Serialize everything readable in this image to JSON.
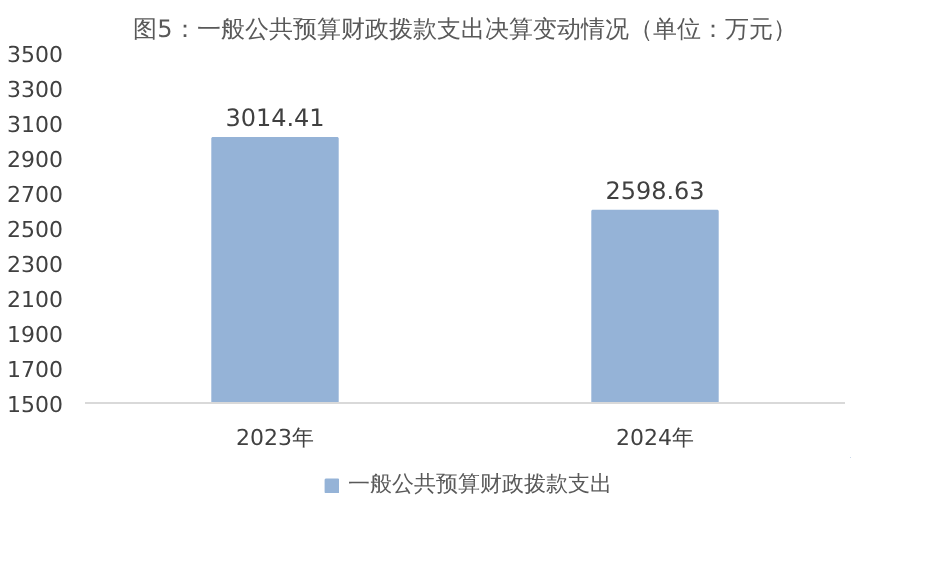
{
  "chart_data": {
    "type": "bar",
    "title": "图5：一般公共预算财政拨款支出决算变动情况（单位：万元）",
    "categories": [
      "2023年",
      "2024年"
    ],
    "series": [
      {
        "name": "一般公共预算财政拨款支出",
        "color": "#95b3d7",
        "values": [
          3014.41,
          2598.63
        ]
      }
    ],
    "ylim": [
      1500,
      3500
    ],
    "yticks": [
      1500,
      1700,
      1900,
      2100,
      2300,
      2500,
      2700,
      2900,
      3100,
      3300,
      3500
    ],
    "data_labels": true,
    "legend": "bottom",
    "grid": false
  }
}
